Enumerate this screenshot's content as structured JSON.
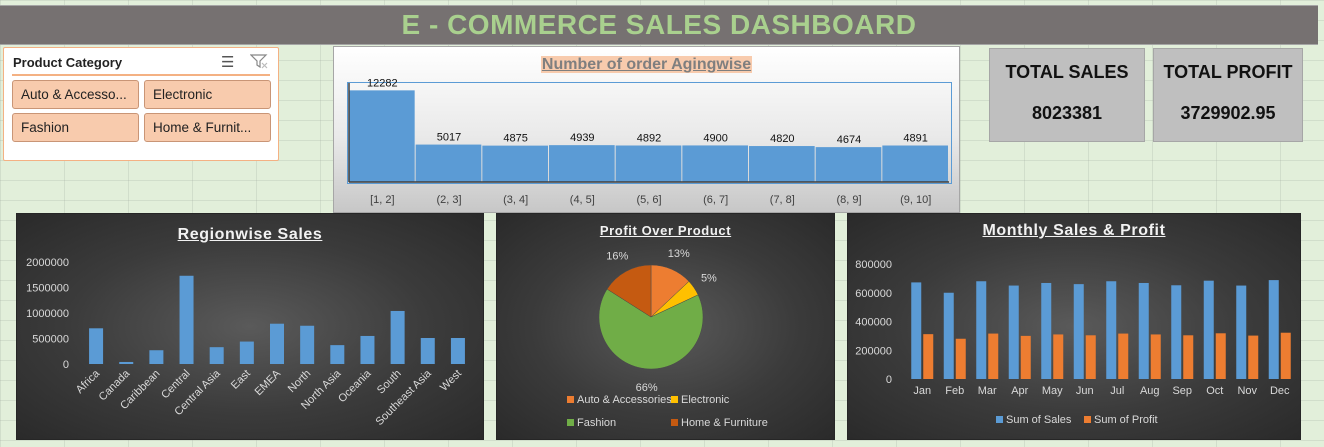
{
  "dashboard_title": "E - COMMERCE SALES DASHBOARD",
  "slicer": {
    "header": "Product Category",
    "multiselect_icon": "multi-select-icon",
    "clear_filter_icon": "clear-filter-icon",
    "items": [
      "Auto & Accesso...",
      "Electronic",
      "Fashion",
      "Home & Furnit..."
    ],
    "item_color": "#f8cbad"
  },
  "kpis": {
    "total_sales_label": "TOTAL SALES",
    "total_sales_value": "8023381",
    "total_profit_label": "TOTAL PROFIT",
    "total_profit_value": "3729902.95"
  },
  "chart_data": [
    {
      "id": "aging",
      "type": "bar",
      "title": "Number of order Agingwise",
      "categories": [
        "[1, 2]",
        "(2, 3]",
        "(3, 4]",
        "(4, 5]",
        "(5, 6]",
        "(6, 7]",
        "(7, 8]",
        "(8, 9]",
        "(9, 10]"
      ],
      "values": [
        12282,
        5017,
        4875,
        4939,
        4892,
        4900,
        4820,
        4674,
        4891
      ],
      "data_labels": true,
      "ylim": [
        0,
        13000
      ],
      "color": "#5b9bd5",
      "grid": false
    },
    {
      "id": "region",
      "type": "bar",
      "title": "Regionwise Sales",
      "categories": [
        "Africa",
        "Canada",
        "Caribbean",
        "Central",
        "Central Asia",
        "East",
        "EMEA",
        "North",
        "North Asia",
        "Oceania",
        "South",
        "Southeast Asia",
        "West"
      ],
      "values": [
        700000,
        40000,
        270000,
        1730000,
        330000,
        440000,
        790000,
        750000,
        370000,
        550000,
        1040000,
        510000,
        510000
      ],
      "y_ticks": [
        "0",
        "500000",
        "1000000",
        "1500000",
        "2000000"
      ],
      "ylim": [
        0,
        2000000
      ],
      "color": "#5b9bd5",
      "grid": false
    },
    {
      "id": "profit_pie",
      "type": "pie",
      "title": "Profit Over Product",
      "labels": [
        "Auto & Accessories",
        "Electronic",
        "Fashion",
        "Home & Furniture"
      ],
      "values": [
        13,
        5,
        66,
        16
      ],
      "value_labels": [
        "13%",
        "5%",
        "66%",
        "16%"
      ],
      "colors": [
        "#ed7d31",
        "#ffc000",
        "#70ad47",
        "#c55a11"
      ],
      "legend_position": "bottom"
    },
    {
      "id": "monthly",
      "type": "bar",
      "title": "Monthly Sales & Profit",
      "categories": [
        "Jan",
        "Feb",
        "Mar",
        "Apr",
        "May",
        "Jun",
        "Jul",
        "Aug",
        "Sep",
        "Oct",
        "Nov",
        "Dec"
      ],
      "series": [
        {
          "name": "Sum of Sales",
          "color": "#5b9bd5",
          "values": [
            672000,
            600000,
            680000,
            650000,
            668000,
            660000,
            680000,
            668000,
            652000,
            684000,
            650000,
            688000
          ]
        },
        {
          "name": "Sum of Profit",
          "color": "#ed7d31",
          "values": [
            312000,
            280000,
            316000,
            300000,
            310000,
            304000,
            316000,
            310000,
            304000,
            318000,
            302000,
            322000
          ]
        }
      ],
      "y_ticks": [
        "0",
        "200000",
        "400000",
        "600000",
        "800000"
      ],
      "ylim": [
        0,
        800000
      ],
      "legend_position": "bottom",
      "grid": false
    }
  ]
}
